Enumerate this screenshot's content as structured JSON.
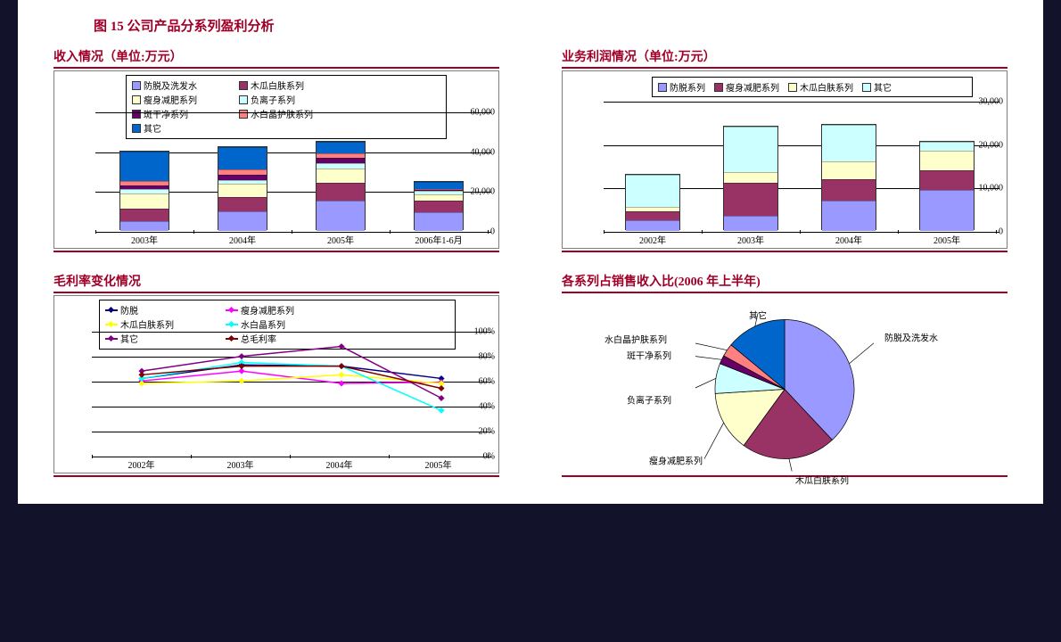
{
  "title": "图 15 公司产品分系列盈利分析",
  "colors": {
    "accent": "#a00028",
    "bg": "#ffffff",
    "border": "#7f7f7f"
  },
  "chart_a": {
    "title": "收入情况（单位:万元）",
    "type": "bar-stacked",
    "ylim": [
      0,
      60000
    ],
    "ytick_step": 20000,
    "categories": [
      "2003年",
      "2004年",
      "2005年",
      "2006年1-6月"
    ],
    "series": [
      {
        "name": "防脱及洗发水",
        "color": "#9999ff"
      },
      {
        "name": "木瓜白肤系列",
        "color": "#993366"
      },
      {
        "name": "瘦身减肥系列",
        "color": "#ffffcc"
      },
      {
        "name": "负离子系列",
        "color": "#ccffff"
      },
      {
        "name": "斑干净系列",
        "color": "#660066"
      },
      {
        "name": "水白晶护肤系列",
        "color": "#ff8080"
      },
      {
        "name": "其它",
        "color": "#0066cc"
      }
    ],
    "values": [
      [
        5000,
        6000,
        8000,
        2000,
        2000,
        2000,
        15000
      ],
      [
        10000,
        7000,
        6500,
        2000,
        2500,
        3000,
        11000
      ],
      [
        15000,
        9000,
        7500,
        2500,
        2500,
        2500,
        6000
      ],
      [
        9500,
        5500,
        3500,
        1500,
        500,
        700,
        3500
      ]
    ]
  },
  "chart_b": {
    "title": "业务利润情况（单位:万元）",
    "type": "bar-stacked",
    "ylim": [
      0,
      30000
    ],
    "ytick_step": 10000,
    "categories": [
      "2002年",
      "2003年",
      "2004年",
      "2005年"
    ],
    "series": [
      {
        "name": "防脱系列",
        "color": "#9999ff"
      },
      {
        "name": "瘦身减肥系列",
        "color": "#993366"
      },
      {
        "name": "木瓜白肤系列",
        "color": "#ffffcc"
      },
      {
        "name": "其它",
        "color": "#ccffff"
      }
    ],
    "values": [
      [
        2500,
        2000,
        1000,
        7500
      ],
      [
        3500,
        7500,
        2500,
        10500
      ],
      [
        7000,
        5000,
        4000,
        8500
      ],
      [
        9500,
        4500,
        4500,
        2000
      ]
    ]
  },
  "chart_c": {
    "title": "毛利率变化情况",
    "type": "line",
    "ylim": [
      0,
      100
    ],
    "ytick_step": 20,
    "y_suffix": "%",
    "categories": [
      "2002年",
      "2003年",
      "2004年",
      "2005年"
    ],
    "series": [
      {
        "name": "防脱",
        "color": "#000080",
        "values": [
          62,
          73,
          72,
          62
        ]
      },
      {
        "name": "瘦身减肥系列",
        "color": "#ff00ff",
        "values": [
          60,
          68,
          58,
          59
        ]
      },
      {
        "name": "木瓜白肤系列",
        "color": "#ffff00",
        "values": [
          58,
          60,
          65,
          58
        ]
      },
      {
        "name": "水白晶系列",
        "color": "#00ffff",
        "values": [
          62,
          75,
          72,
          36
        ]
      },
      {
        "name": "其它",
        "color": "#800080",
        "values": [
          68,
          80,
          88,
          46
        ]
      },
      {
        "name": "总毛利率",
        "color": "#800000",
        "values": [
          65,
          72,
          72,
          54
        ]
      }
    ]
  },
  "chart_d": {
    "title": "各系列占销售收入比(2006 年上半年)",
    "type": "pie",
    "slices": [
      {
        "name": "防脱及洗发水",
        "color": "#9999ff",
        "value": 38
      },
      {
        "name": "木瓜白肤系列",
        "color": "#993366",
        "value": 22
      },
      {
        "name": "瘦身减肥系列",
        "color": "#ffffcc",
        "value": 14
      },
      {
        "name": "负离子系列",
        "color": "#ccffff",
        "value": 7
      },
      {
        "name": "斑干净系列",
        "color": "#660066",
        "value": 2
      },
      {
        "name": "水白晶护肤系列",
        "color": "#ff8080",
        "value": 3
      },
      {
        "name": "其它",
        "color": "#0066cc",
        "value": 14
      }
    ]
  }
}
